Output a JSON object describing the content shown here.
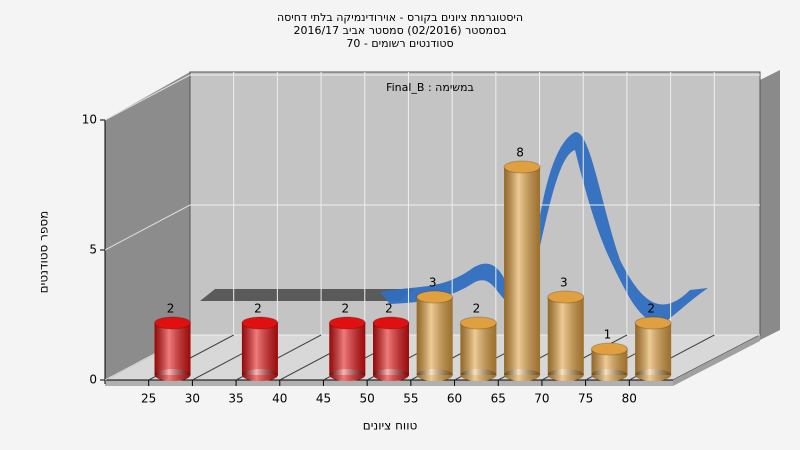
{
  "chart_data": {
    "type": "bar",
    "title": [
      "היסטוגרמת ציונים בקורס - אוירודינמיקה בלתי דחיסה",
      "בסמסטר (02/2016)  סמסטר אביב 2016/17",
      "סטודנטים רשומים - 70"
    ],
    "annotation": "במשימה : Final_B",
    "x_label": "טווח ציונים",
    "y_label": "מספר סטודנטים",
    "x": [
      27.5,
      37.5,
      47.5,
      52.5,
      57.5,
      62.5,
      67.5,
      72.5,
      77.5,
      82.5
    ],
    "values": [
      2,
      2,
      2,
      2,
      3,
      2,
      8,
      3,
      1,
      2
    ],
    "colors": [
      "#e01010",
      "#e01010",
      "#e01010",
      "#e01010",
      "#e0a040",
      "#e0a040",
      "#e0a040",
      "#e0a040",
      "#e0a040",
      "#e0a040"
    ],
    "xlim": [
      20,
      85
    ],
    "xticks": [
      25,
      30,
      35,
      40,
      45,
      50,
      55,
      60,
      65,
      70,
      75,
      80
    ],
    "ylim": [
      0,
      10
    ],
    "yticks": [
      0,
      5,
      10
    ],
    "grid": true
  }
}
